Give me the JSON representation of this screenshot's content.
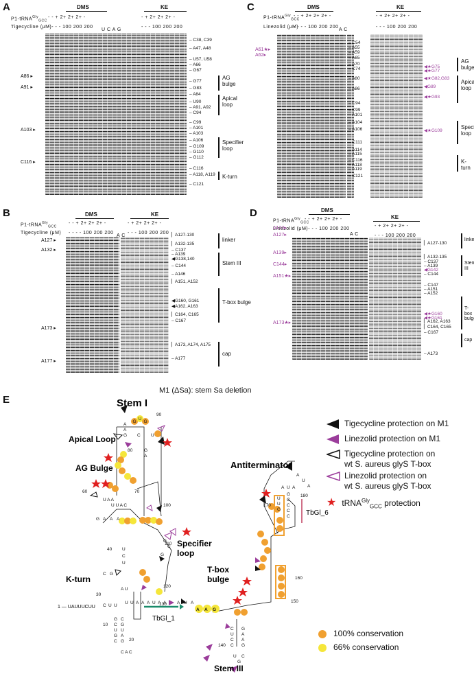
{
  "panels": {
    "A": {
      "letter": "A",
      "groups": [
        "DMS",
        "KE"
      ],
      "row1_label": "P1-tRNA",
      "row1_sup": "Gly",
      "row1_sub": "GCC",
      "row1_values": "- - + 2+ 2+ 2+ -",
      "row1_values_ke": "- + 2+ 2+ 2+ -",
      "row2_label": "Tigecycline (μM)",
      "row2_values": "- - - - 100 200 200",
      "row2_values_ke": "- - - 100 200 200",
      "seq_lanes": "U C A G",
      "left_marks": [
        "A86",
        "A91",
        "A103",
        "C116"
      ],
      "right_marks": [
        "C38, C39",
        "A47, A48",
        "U57, U58",
        "A66",
        "G67",
        "G77",
        "G83",
        "A84",
        "U90",
        "A91, A92",
        "C94",
        "C99",
        "A101",
        "A103",
        "A106",
        "G109",
        "G110",
        "G112",
        "C116",
        "A118, A119",
        "C121"
      ],
      "regions": [
        "AG bulge",
        "Apical loop",
        "Specifier loop",
        "K-turn"
      ]
    },
    "B": {
      "letter": "B",
      "groups": [
        "DMS",
        "KE"
      ],
      "row1_label": "P1-tRNA",
      "row1_sup": "Gly",
      "row1_sub": "GCC",
      "row1_values": "- - + 2+ 2+ 2+ -",
      "row1_values_ke": "- + 2+ 2+ 2+ -",
      "row2_label": "Tigecycline (μM)",
      "row2_values": "- - - - 100 200 200",
      "row2_values_ke": "- - - 100 200 200",
      "seq_lanes": "A C",
      "left_marks": [
        "A127",
        "A132",
        "A173",
        "A177"
      ],
      "right_marks": [
        "A127-130",
        "A132-135",
        "C137",
        "A139",
        "G138,140",
        "C144",
        "A146",
        "A151, A152",
        "G160, G161",
        "A162, A163",
        "C164, C165",
        "C167",
        "A173, A174, A175",
        "A177"
      ],
      "regions": [
        "linker",
        "Stem III",
        "T-box bulge",
        "cap"
      ]
    },
    "C": {
      "letter": "C",
      "groups": [
        "DMS",
        "KE"
      ],
      "row1_label": "P1-tRNA",
      "row1_sup": "Gly",
      "row1_sub": "GCC",
      "row1_values": "- - + 2+ 2+ 2+ -",
      "row1_values_ke": "- + 2+ 2+ 2+ -",
      "row2_label": "Linezolid (μM)",
      "row2_values": "- - - - 100 200 200",
      "row2_values_ke": "- - - 100 200 200",
      "seq_lanes": "A C",
      "left_marks": [
        "A61",
        "A62"
      ],
      "right_marks": [
        "C54",
        "A55",
        "A59",
        "A65",
        "A70",
        "C74",
        "A80",
        "A86",
        "C94",
        "C99",
        "A101",
        "A104",
        "A106",
        "C111",
        "A114",
        "A115",
        "C116",
        "A118",
        "A119",
        "C121"
      ],
      "right_magenta": [
        "G75",
        "G77",
        "G82,G83",
        "G89",
        "G93",
        "G109"
      ],
      "regions": [
        "AG bulge",
        "Apical loop",
        "Specifier loop",
        "K-turn"
      ]
    },
    "D": {
      "letter": "D",
      "groups": [
        "DMS",
        "KE"
      ],
      "row1_label": "P1-tRNA",
      "row1_sup": "Gly",
      "row1_sub": "GCC",
      "row1_values": "- - + 2+ 2+ 2+ -",
      "row1_values_ke": "- + 2+ 2+ 2+ -",
      "row2_label": "Linezolid (μM)",
      "row2_values": "- - - - 100 200 200",
      "row2_values_ke": "- - - 100 200 200",
      "seq_lanes": "A C",
      "left_marks": [
        "A122",
        "A127",
        "A139",
        "C144",
        "A151",
        "A173"
      ],
      "right_marks": [
        "A127-130",
        "A132-135",
        "C137",
        "A139",
        "C144",
        "C147",
        "A151",
        "A152",
        "A162, A163",
        "C164, C165",
        "C167",
        "A173"
      ],
      "right_magenta": [
        "G142",
        "G160",
        "G161"
      ],
      "regions": [
        "linker",
        "Stem III",
        "T-box bulge",
        "cap"
      ]
    },
    "E": {
      "letter": "E",
      "title": "M1 (ΔSa): stem Sa deletion",
      "labels": {
        "stem1": "Stem I",
        "apical": "Apical Loop",
        "agbulge": "AG Bulge",
        "specifier": "Specifier loop",
        "kturn": "K-turn",
        "antiterm": "Antiterminator",
        "tboxbulge": "T-box bulge",
        "stem3": "Stem III",
        "tbgl1": "TbGl_1",
        "tbgl6": "TbGl_6",
        "five_prime": "1 — UAUUUCUU"
      },
      "legend": [
        {
          "text": "Tigecycline protection on M1",
          "icon": "black-filled-triangle"
        },
        {
          "text": "Linezolid protection on M1",
          "icon": "purple-filled-triangle"
        },
        {
          "text": "Tigecycline protection on",
          "text2": "wt S. aureus glyS T-box",
          "icon": "black-open-triangle"
        },
        {
          "text": "Linezolid protection on",
          "text2": "wt S. aureus glyS T-box",
          "icon": "purple-open-triangle"
        },
        {
          "text": "tRNA",
          "sup": "Gly",
          "sub": "GCC",
          "text3": " protection",
          "icon": "red-star"
        }
      ],
      "conservation": [
        {
          "text": "100% conservation",
          "color": "#f0a030"
        },
        {
          "text": "66% conservation",
          "color": "#f5e63a"
        }
      ]
    }
  },
  "colors": {
    "magenta": "#9b3d9b",
    "star": "#e02020",
    "orange": "#f0a030",
    "yellow": "#f5e63a",
    "teal": "#1a8a6a"
  }
}
